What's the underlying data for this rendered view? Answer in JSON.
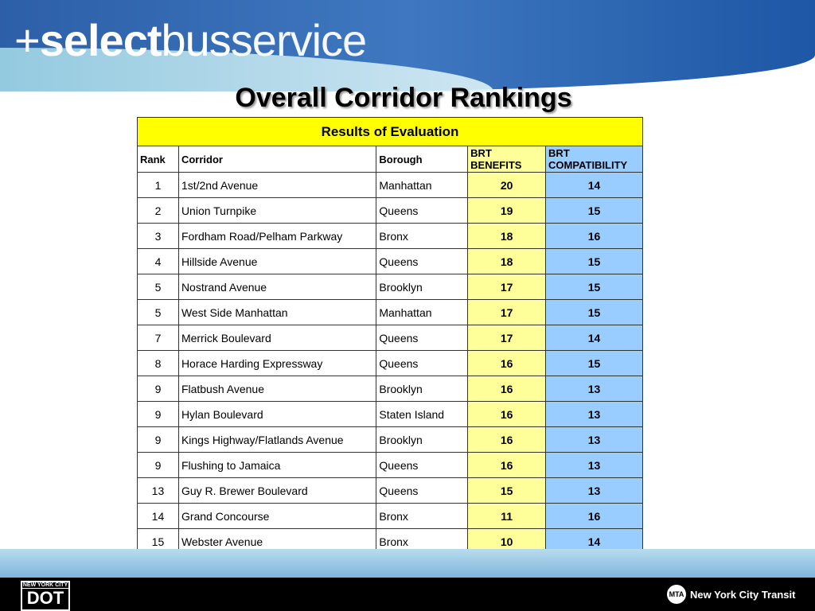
{
  "header": {
    "logo": {
      "plus": "+",
      "select": "select",
      "bus": "bus",
      "service": "service"
    },
    "title": "Overall Corridor Rankings"
  },
  "table": {
    "caption": "Results of Evaluation",
    "columns": [
      "Rank",
      "Corridor",
      "Borough",
      "BRT BENEFITS",
      "BRT COMPATIBILITY"
    ],
    "rows": [
      [
        1,
        "1st/2nd Avenue",
        "Manhattan",
        20,
        14
      ],
      [
        2,
        "Union Turnpike",
        "Queens",
        19,
        15
      ],
      [
        3,
        "Fordham Road/Pelham Parkway",
        "Bronx",
        18,
        16
      ],
      [
        4,
        "Hillside Avenue",
        "Queens",
        18,
        15
      ],
      [
        5,
        "Nostrand Avenue",
        "Brooklyn",
        17,
        15
      ],
      [
        5,
        "West Side Manhattan",
        "Manhattan",
        17,
        15
      ],
      [
        7,
        "Merrick Boulevard",
        "Queens",
        17,
        14
      ],
      [
        8,
        "Horace Harding Expressway",
        "Queens",
        16,
        15
      ],
      [
        9,
        "Flatbush Avenue",
        "Brooklyn",
        16,
        13
      ],
      [
        9,
        "Hylan Boulevard",
        "Staten Island",
        16,
        13
      ],
      [
        9,
        "Kings Highway/Flatlands Avenue",
        "Brooklyn",
        16,
        13
      ],
      [
        9,
        "Flushing to Jamaica",
        "Queens",
        16,
        13
      ],
      [
        13,
        "Guy R. Brewer Boulevard",
        "Queens",
        15,
        13
      ],
      [
        14,
        "Grand Concourse",
        "Bronx",
        11,
        16
      ],
      [
        15,
        "Webster Avenue",
        "Bronx",
        10,
        14
      ]
    ]
  },
  "footer": {
    "dot_top": "NEW YORK CITY",
    "dot": "DOT",
    "mta": "MTA",
    "transit": "New York City Transit"
  }
}
